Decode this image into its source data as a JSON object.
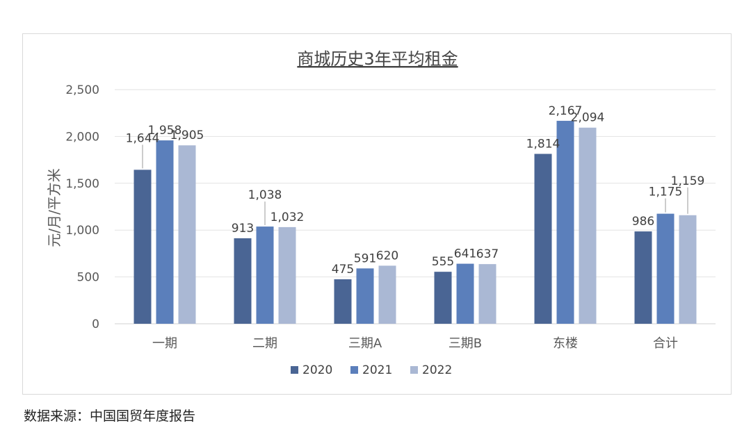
{
  "chart_data": {
    "type": "bar",
    "title": "商城历史3年平均租金",
    "ylabel": "元/月/平方米",
    "xlabel": "",
    "categories": [
      "一期",
      "二期",
      "三期A",
      "三期B",
      "东楼",
      "合计"
    ],
    "series": [
      {
        "name": "2020",
        "color": "#4a6594",
        "values": [
          1644,
          913,
          475,
          555,
          1814,
          986
        ],
        "labels": [
          "1,644",
          "913",
          "475",
          "555",
          "1,814",
          "986"
        ]
      },
      {
        "name": "2021",
        "color": "#5b7fbb",
        "values": [
          1958,
          1038,
          591,
          641,
          2167,
          1175
        ],
        "labels": [
          "1,958",
          "1,038",
          "591",
          "641",
          "2,167",
          "1,175"
        ]
      },
      {
        "name": "2022",
        "color": "#aab8d4",
        "values": [
          1905,
          1032,
          620,
          637,
          2094,
          1159
        ],
        "labels": [
          "1,905",
          "1,032",
          "620",
          "637",
          "2,094",
          "1,159"
        ]
      }
    ],
    "ylim": [
      0,
      2500
    ],
    "yticks": [
      0,
      500,
      1000,
      1500,
      2000,
      2500
    ],
    "ytick_labels": [
      "0",
      "500",
      "1,000",
      "1,500",
      "2,000",
      "2,500"
    ],
    "grid": true,
    "legend_position": "bottom"
  },
  "source_note": "数据来源：中国国贸年度报告"
}
